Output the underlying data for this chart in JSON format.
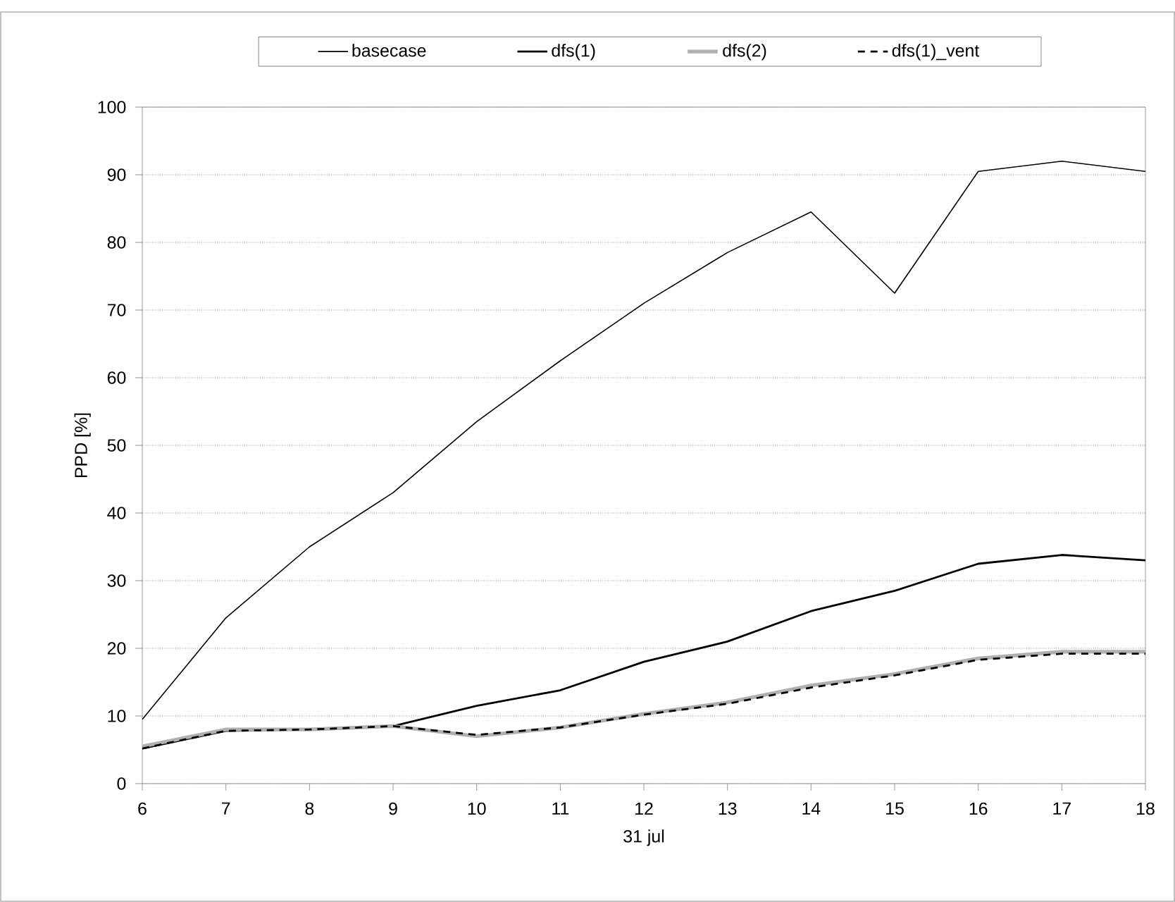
{
  "chart_data": {
    "type": "line",
    "xlabel": "31 jul",
    "ylabel": "PPD [%]",
    "x": [
      6,
      7,
      8,
      9,
      10,
      11,
      12,
      13,
      14,
      15,
      16,
      17,
      18
    ],
    "xlim": [
      6,
      18
    ],
    "xticks": [
      6,
      7,
      8,
      9,
      10,
      11,
      12,
      13,
      14,
      15,
      16,
      17,
      18
    ],
    "ylim": [
      0,
      100
    ],
    "yticks": [
      0,
      10,
      20,
      30,
      40,
      50,
      60,
      70,
      80,
      90,
      100
    ],
    "grid": "y",
    "legend": "top",
    "series": [
      {
        "name": "basecase",
        "color": "#000000",
        "line_style": "solid",
        "values": [
          9.5,
          24.5,
          35,
          43,
          53.5,
          62.5,
          71,
          78.5,
          84.5,
          72.5,
          90.5,
          92,
          90.5
        ]
      },
      {
        "name": "dfs(1)",
        "color": "#000000",
        "line_style": "solid",
        "values": [
          5.2,
          7.8,
          8,
          8.5,
          11.5,
          13.8,
          18,
          21,
          25.5,
          28.5,
          32.5,
          33.8,
          33
        ]
      },
      {
        "name": "dfs(2)",
        "color": "#b0b0b0",
        "line_style": "solid",
        "values": [
          5.5,
          8,
          8,
          8.5,
          7,
          8.3,
          10.3,
          12,
          14.5,
          16.2,
          18.5,
          19.5,
          19.5
        ]
      },
      {
        "name": "dfs(1)_vent",
        "color": "#000000",
        "line_style": "dashed",
        "values": [
          5.2,
          7.8,
          8,
          8.5,
          7.2,
          8.3,
          10.2,
          11.8,
          14.2,
          16,
          18.3,
          19.2,
          19.2
        ]
      }
    ]
  }
}
